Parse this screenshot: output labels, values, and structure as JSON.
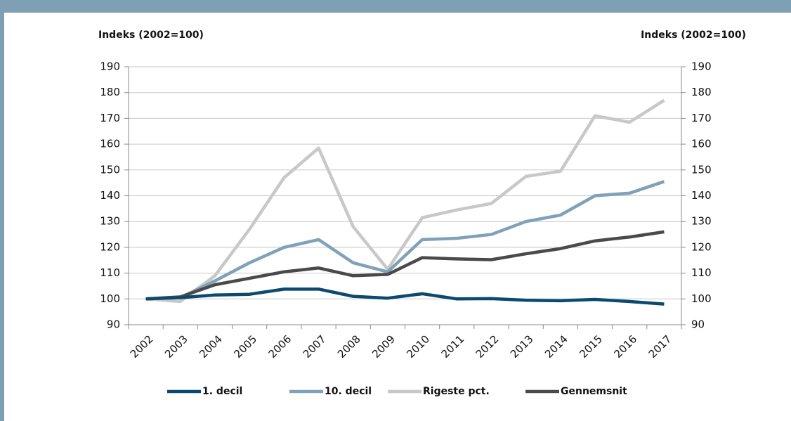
{
  "chart_data": {
    "type": "line",
    "ylabel": "Indeks (2002=100)",
    "y2label": "Indeks (2002=100)",
    "categories": [
      "2002",
      "2003",
      "2004",
      "2005",
      "2006",
      "2007",
      "2008",
      "2009",
      "2010",
      "2011",
      "2012",
      "2013",
      "2014",
      "2015",
      "2016",
      "2017"
    ],
    "series": [
      {
        "name": "1. decil",
        "color": "#0b4a6f",
        "values": [
          100,
          100.5,
          101.5,
          101.8,
          103.8,
          103.8,
          101,
          100.3,
          102,
          100,
          100.1,
          99.5,
          99.3,
          99.8,
          99,
          98
        ]
      },
      {
        "name": "10. decil",
        "color": "#7fa2b9",
        "values": [
          100,
          100.5,
          107,
          114,
          120,
          123,
          114,
          110.5,
          123,
          123.5,
          125,
          130,
          132.5,
          140,
          141,
          145.5
        ]
      },
      {
        "name": "Rigeste pct.",
        "color": "#c8c8c8",
        "values": [
          100,
          99,
          109,
          127,
          147,
          158.5,
          128,
          111.5,
          131.5,
          134.5,
          137,
          147.5,
          149.5,
          171,
          168.5,
          177
        ]
      },
      {
        "name": "Gennemsnit",
        "color": "#4a4a4a",
        "values": [
          100,
          100.8,
          105.5,
          108,
          110.5,
          112,
          109,
          109.5,
          116,
          115.5,
          115.2,
          117.5,
          119.5,
          122.5,
          124,
          126
        ]
      }
    ],
    "ylim": [
      90,
      190
    ],
    "yticks": [
      90,
      100,
      110,
      120,
      130,
      140,
      150,
      160,
      170,
      180,
      190
    ],
    "y2lim": [
      90,
      190
    ],
    "y2ticks": [
      90,
      100,
      110,
      120,
      130,
      140,
      150,
      160,
      170,
      180,
      190
    ],
    "grid": true,
    "legend": "bottom"
  }
}
